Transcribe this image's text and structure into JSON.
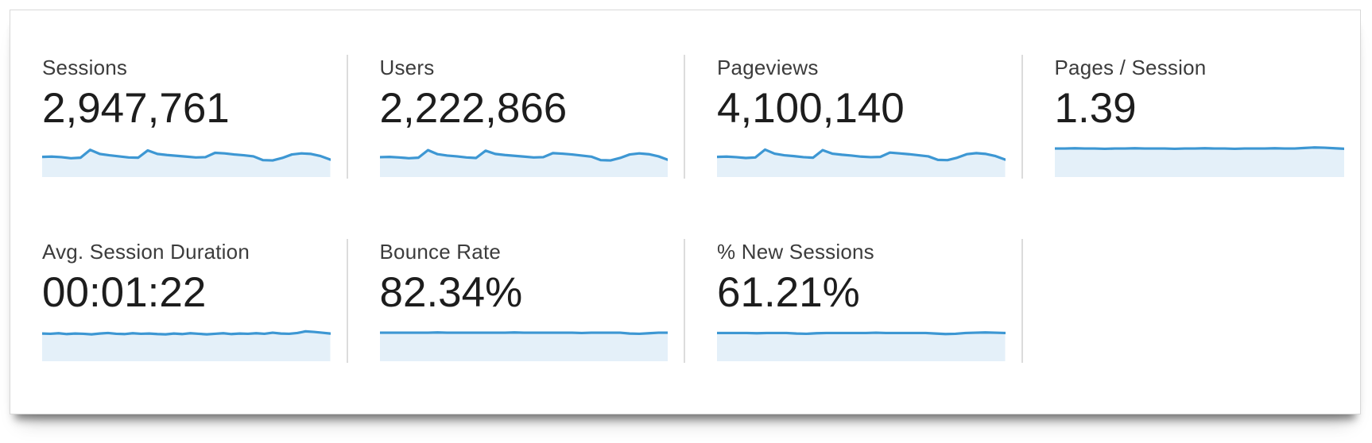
{
  "metrics": [
    {
      "label": "Sessions",
      "value": "2,947,761",
      "spark": [
        57,
        58,
        56,
        52,
        54,
        83,
        68,
        63,
        59,
        55,
        54,
        81,
        68,
        64,
        61,
        58,
        55,
        56,
        72,
        70,
        66,
        63,
        59,
        45,
        44,
        53,
        66,
        70,
        68,
        60,
        47
      ]
    },
    {
      "label": "Users",
      "value": "2,222,866",
      "spark": [
        56,
        57,
        55,
        52,
        54,
        82,
        67,
        62,
        59,
        55,
        53,
        80,
        68,
        64,
        61,
        58,
        55,
        56,
        71,
        69,
        66,
        62,
        58,
        45,
        44,
        53,
        66,
        70,
        67,
        59,
        46
      ]
    },
    {
      "label": "Pageviews",
      "value": "4,100,140",
      "spark": [
        57,
        58,
        56,
        53,
        55,
        84,
        69,
        63,
        60,
        56,
        54,
        82,
        69,
        65,
        62,
        58,
        56,
        57,
        73,
        70,
        67,
        63,
        59,
        46,
        45,
        54,
        67,
        71,
        68,
        60,
        47
      ]
    },
    {
      "label": "Pages / Session",
      "value": "1.39",
      "spark": [
        88,
        88,
        89,
        88,
        88,
        87,
        88,
        88,
        89,
        88,
        88,
        88,
        87,
        88,
        88,
        89,
        88,
        88,
        87,
        88,
        88,
        88,
        89,
        88,
        88,
        90,
        92,
        91,
        89,
        87
      ]
    },
    {
      "label": "Avg. Session Duration",
      "value": "00:01:22",
      "spark": [
        85,
        84,
        86,
        83,
        85,
        84,
        82,
        85,
        87,
        84,
        83,
        86,
        84,
        85,
        83,
        82,
        85,
        83,
        86,
        84,
        82,
        84,
        86,
        83,
        85,
        84,
        86,
        84,
        88,
        85,
        84,
        87,
        93,
        91,
        88,
        85
      ]
    },
    {
      "label": "Bounce Rate",
      "value": "82.34%",
      "spark": [
        88,
        88,
        88,
        88,
        88,
        88,
        89,
        88,
        88,
        88,
        88,
        88,
        88,
        88,
        89,
        88,
        88,
        88,
        88,
        88,
        88,
        87,
        88,
        88,
        88,
        88,
        85,
        84,
        86,
        88,
        88
      ]
    },
    {
      "label": "% New Sessions",
      "value": "61.21%",
      "spark": [
        87,
        87,
        87,
        87,
        86,
        87,
        87,
        87,
        85,
        84,
        86,
        87,
        87,
        87,
        87,
        87,
        88,
        87,
        87,
        87,
        87,
        87,
        85,
        83,
        84,
        87,
        88,
        89,
        88,
        87
      ]
    }
  ],
  "colors": {
    "spark_line": "#3d97d3",
    "spark_fill": "#e4f0f9",
    "label_text": "#3c3c3c",
    "value_text": "#1d1d1d",
    "divider": "#dcdcdc",
    "card_border": "#d8d8d8"
  },
  "sparkline_note": "spark values are normalized relative heights 0-100 (no axes shown in UI)"
}
